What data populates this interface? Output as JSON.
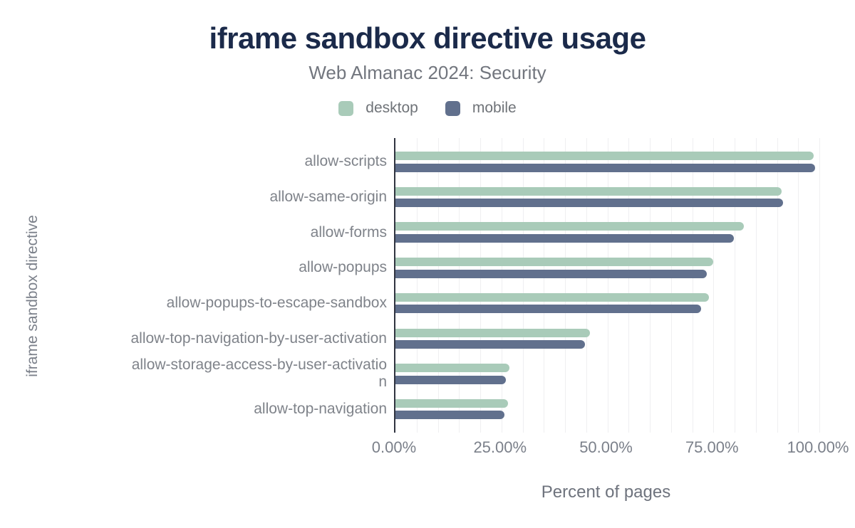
{
  "figure": {
    "title": "iframe sandbox directive usage",
    "subtitle": "Web Almanac 2024: Security"
  },
  "chart_data": {
    "type": "bar",
    "orientation": "horizontal",
    "title": "iframe sandbox directive usage",
    "subtitle": "Web Almanac 2024: Security",
    "xlabel": "Percent of pages",
    "ylabel": "iframe sandbox directive",
    "xlim": [
      0,
      100
    ],
    "x_unit": "%",
    "grid": {
      "vertical": true,
      "step_percent": 5
    },
    "legend_position": "top",
    "categories": [
      "allow-scripts",
      "allow-same-origin",
      "allow-forms",
      "allow-popups",
      "allow-popups-to-escape-sandbox",
      "allow-top-navigation-by-user-activation",
      "allow-storage-access-by-user-activation",
      "allow-top-navigation"
    ],
    "series": [
      {
        "name": "desktop",
        "color": "#a9cbb9",
        "values": [
          98.6,
          91.1,
          82.2,
          75.0,
          74.0,
          45.8,
          26.9,
          26.6
        ]
      },
      {
        "name": "mobile",
        "color": "#61708d",
        "values": [
          99.0,
          91.5,
          79.8,
          73.4,
          72.1,
          44.7,
          26.1,
          25.7
        ]
      }
    ],
    "x_ticks": [
      {
        "value": 0,
        "label": "0.00%"
      },
      {
        "value": 25,
        "label": "25.00%"
      },
      {
        "value": 50,
        "label": "50.00%"
      },
      {
        "value": 75,
        "label": "75.00%"
      },
      {
        "value": 100,
        "label": "100.00%"
      }
    ]
  },
  "colors": {
    "title": "#1b2a4a",
    "subtitle": "#72767e",
    "axis_line": "#303440",
    "gridline": "#efeff1",
    "tick_label": "#7b808a",
    "category_label": "#7f838a",
    "background": "#ffffff"
  }
}
